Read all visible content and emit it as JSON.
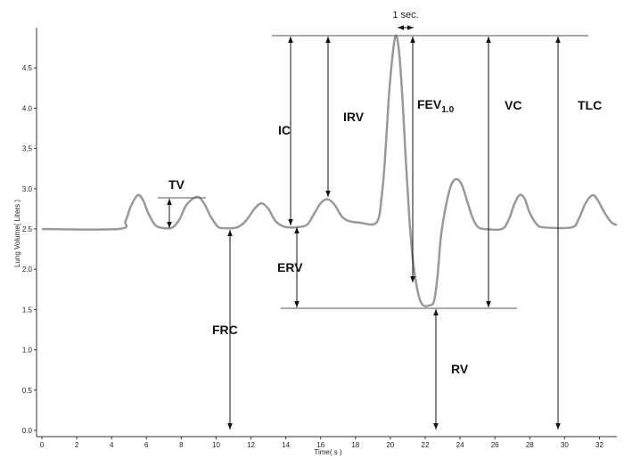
{
  "chart_data": {
    "type": "line",
    "x_label": "Time( s )",
    "y_label": "Lung Volume( Liters )",
    "xlim": [
      0,
      33
    ],
    "ylim": [
      0,
      5
    ],
    "xticks": [
      0,
      2,
      4,
      6,
      8,
      10,
      12,
      14,
      16,
      18,
      20,
      22,
      24,
      26,
      28,
      30,
      32
    ],
    "yticks": [
      {
        "value": 0,
        "label": "0.0"
      },
      0.5,
      {
        "value": 1,
        "label": "1.0"
      },
      1.5,
      {
        "value": 2,
        "label": "2.0"
      },
      2.5,
      {
        "value": 3,
        "label": "3.0"
      },
      3.5,
      {
        "value": 4,
        "label": "4.0"
      },
      4.5
    ],
    "series": [
      {
        "color": "#999999",
        "x": [
          0,
          4.4,
          4.8,
          5.1,
          5.5,
          5.8,
          6.1,
          6.5,
          7.0,
          7.5,
          7.9,
          8.3,
          8.9,
          9.3,
          9.7,
          10.1,
          10.5,
          11.2,
          11.7,
          12.2,
          12.6,
          13.0,
          13.4,
          13.9,
          14.5,
          15.2,
          15.6,
          16.0,
          16.4,
          16.8,
          17.2,
          17.6,
          18.2,
          19.2,
          19.5,
          19.7,
          19.9,
          20.1,
          20.3,
          20.5,
          20.7,
          20.9,
          21.1,
          21.3,
          21.5,
          21.7,
          21.9,
          22.2,
          22.5,
          22.7,
          22.9,
          23.2,
          23.5,
          23.8,
          24.1,
          24.4,
          24.7,
          25.0,
          25.4,
          26.4,
          26.8,
          27.1,
          27.4,
          27.7,
          28.0,
          28.4,
          28.8,
          30.4,
          30.8,
          31.2,
          31.6,
          31.9,
          32.3,
          32.7,
          33
        ],
        "values": [
          2.5,
          2.5,
          2.6,
          2.78,
          2.92,
          2.86,
          2.7,
          2.55,
          2.51,
          2.52,
          2.62,
          2.8,
          2.9,
          2.82,
          2.65,
          2.53,
          2.51,
          2.52,
          2.6,
          2.75,
          2.82,
          2.75,
          2.6,
          2.53,
          2.52,
          2.55,
          2.68,
          2.82,
          2.87,
          2.8,
          2.66,
          2.6,
          2.58,
          2.58,
          2.9,
          3.4,
          4.1,
          4.6,
          4.9,
          4.7,
          4.1,
          3.3,
          2.6,
          2.1,
          1.8,
          1.62,
          1.55,
          1.55,
          1.6,
          1.9,
          2.4,
          2.8,
          3.05,
          3.12,
          3.05,
          2.85,
          2.65,
          2.53,
          2.5,
          2.5,
          2.62,
          2.8,
          2.92,
          2.88,
          2.7,
          2.56,
          2.52,
          2.52,
          2.62,
          2.82,
          2.92,
          2.86,
          2.7,
          2.58,
          2.55
        ]
      }
    ],
    "annotations": [
      {
        "text": "1 sec."
      },
      {
        "text": "TV"
      },
      {
        "text": "IC"
      },
      {
        "text": "IRV"
      },
      {
        "text": "FEV",
        "subscript": "1.0"
      },
      {
        "text": "VC"
      },
      {
        "text": "TLC"
      },
      {
        "text": "ERV"
      },
      {
        "text": "FRC"
      },
      {
        "text": "RV"
      }
    ]
  }
}
